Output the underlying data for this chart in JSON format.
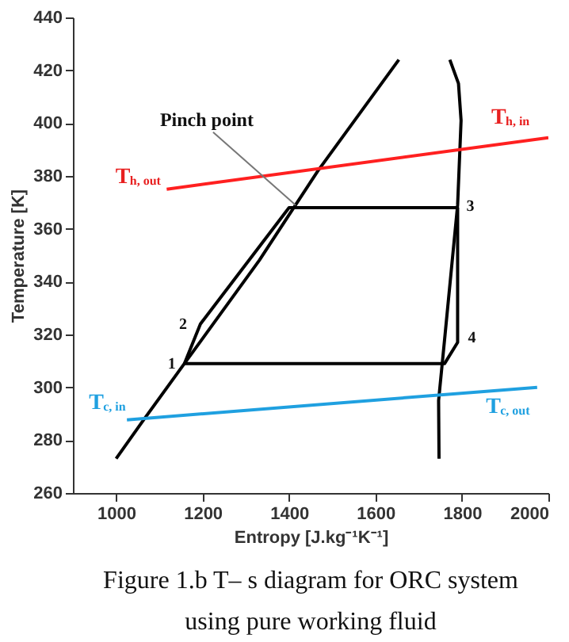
{
  "chart_data": {
    "type": "line",
    "xlabel": "Entropy [J.kg⁻¹K⁻¹]",
    "ylabel": "Temperature [K]",
    "xlim": [
      900,
      2000
    ],
    "xticks": [
      {
        "value": 1000,
        "label": "1000"
      },
      {
        "value": 1200,
        "label": "1200"
      },
      {
        "value": 1400,
        "label": "1400"
      },
      {
        "value": 1600,
        "label": "1600"
      },
      {
        "value": 1800,
        "label": "1800"
      },
      {
        "value": 2000,
        "label": "2000"
      }
    ],
    "ylim": [
      260,
      440
    ],
    "yticks": [
      260,
      280,
      300,
      320,
      340,
      360,
      380,
      400,
      420,
      440
    ],
    "grid": false,
    "legend": false,
    "marker": "none",
    "line_style": "solid",
    "series": [
      {
        "color": "#000000",
        "x": [
          1000,
          1065,
          1158,
          1331,
          1415,
          1467,
          1654
        ],
        "values": [
          273,
          288,
          309,
          348,
          369,
          382,
          424
        ]
      },
      {
        "color": "#000000",
        "x": [
          1772,
          1792,
          1798,
          1790,
          1761,
          1746,
          1747
        ],
        "values": [
          424,
          415,
          401,
          369,
          320,
          295,
          273
        ]
      },
      {
        "color": "#000000",
        "x": [
          1158,
          1195,
          1400,
          1790
        ],
        "values": [
          309,
          324,
          368,
          368
        ]
      },
      {
        "color": "#000000",
        "x": [
          1790,
          1790,
          1760,
          1158
        ],
        "values": [
          368,
          317,
          309,
          309
        ]
      },
      {
        "color": "#ff2020",
        "x": [
          1117,
          2000
        ],
        "values": [
          375,
          394.5
        ]
      },
      {
        "color": "#1fa0e0",
        "x": [
          1025,
          1974
        ],
        "values": [
          287.7,
          300
        ]
      }
    ],
    "annotations": [
      {
        "text": "Pinch point",
        "x": 1415,
        "y": 369
      },
      {
        "text": "T$_{h, out}$",
        "x": 1117,
        "y": 375
      },
      {
        "text": "T$_{h, in}$",
        "x": 2000,
        "y": 394.5
      },
      {
        "text": "T$_{c, in}$",
        "x": 1025,
        "y": 287.7
      },
      {
        "text": "T$_{c, out}$",
        "x": 1974,
        "y": 300
      },
      {
        "text": "1",
        "x": 1158,
        "y": 309
      },
      {
        "text": "2",
        "x": 1195,
        "y": 324
      },
      {
        "text": "3",
        "x": 1790,
        "y": 368
      },
      {
        "text": "4",
        "x": 1790,
        "y": 317
      },
      "Figure 1.b T– s diagram for ORC system\nusing pure working fluid"
    ]
  }
}
